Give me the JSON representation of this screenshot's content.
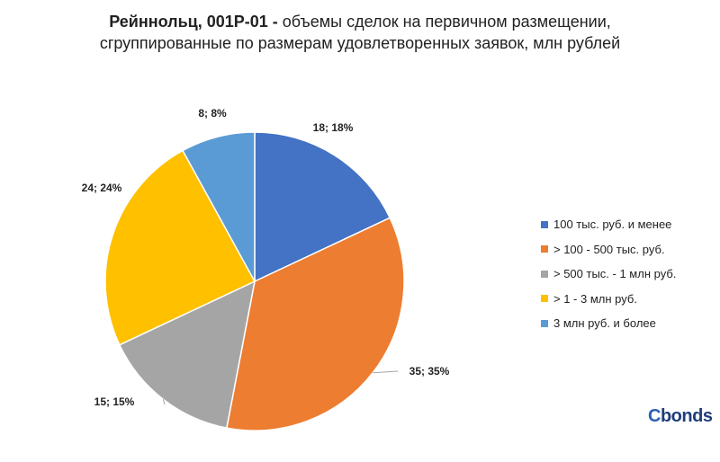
{
  "chart_data": {
    "type": "pie",
    "title_bold": "Рейннольц, 001Р-01 -",
    "title_rest": " объемы сделок на первичном размещении,",
    "subtitle": "сгруппированные по размерам удовлетворенных заявок, млн рублей",
    "slices": [
      {
        "name": "100 тыс. руб. и менее",
        "value": 18,
        "percent": 18,
        "label": "18; 18%",
        "color": "#4472c4"
      },
      {
        "name": "> 100 - 500 тыс. руб.",
        "value": 35,
        "percent": 35,
        "label": "35; 35%",
        "color": "#ed7d31"
      },
      {
        "name": "> 500 тыс. - 1 млн руб.",
        "value": 15,
        "percent": 15,
        "label": "15; 15%",
        "color": "#a5a5a5"
      },
      {
        "name": "> 1 - 3 млн руб.",
        "value": 24,
        "percent": 24,
        "label": "24; 24%",
        "color": "#ffc000"
      },
      {
        "name": "3 млн руб. и более",
        "value": 8,
        "percent": 8,
        "label": "8; 8%",
        "color": "#5b9bd5"
      }
    ],
    "legend_position": "right"
  },
  "branding": {
    "logo_c": "C",
    "logo_rest": "bonds"
  }
}
